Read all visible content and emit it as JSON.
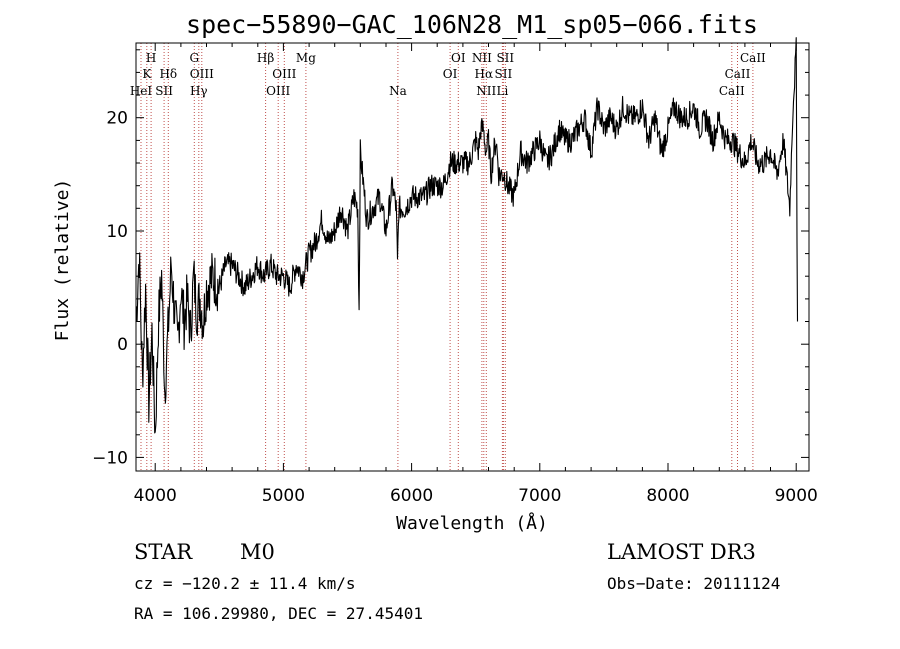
{
  "chart_data": {
    "type": "line",
    "title": "spec−55890−GAC_106N28_M1_sp05−066.fits",
    "xlabel": "Wavelength (Å)",
    "ylabel": "Flux (relative)",
    "xlim": [
      3850,
      9100
    ],
    "ylim": [
      -11.2,
      26.6
    ],
    "x_ticks": [
      4000,
      5000,
      6000,
      7000,
      8000,
      9000
    ],
    "y_ticks": [
      -10,
      0,
      10,
      20
    ],
    "grid": false,
    "series": [
      {
        "name": "spectrum",
        "color": "#000000",
        "x": [
          3850,
          3875,
          3900,
          3925,
          3950,
          3975,
          4000,
          4025,
          4050,
          4075,
          4100,
          4125,
          4150,
          4175,
          4200,
          4225,
          4250,
          4275,
          4300,
          4325,
          4350,
          4375,
          4400,
          4450,
          4500,
          4550,
          4600,
          4650,
          4700,
          4750,
          4800,
          4850,
          4900,
          4950,
          5000,
          5050,
          5100,
          5150,
          5200,
          5250,
          5300,
          5350,
          5400,
          5450,
          5500,
          5550,
          5580,
          5590,
          5600,
          5650,
          5700,
          5750,
          5800,
          5850,
          5880,
          5890,
          5900,
          5950,
          6000,
          6050,
          6100,
          6150,
          6200,
          6250,
          6300,
          6350,
          6400,
          6450,
          6500,
          6520,
          6540,
          6560,
          6580,
          6600,
          6620,
          6640,
          6660,
          6680,
          6700,
          6720,
          6750,
          6800,
          6850,
          6900,
          6950,
          7000,
          7050,
          7100,
          7150,
          7200,
          7250,
          7300,
          7350,
          7400,
          7450,
          7500,
          7550,
          7600,
          7650,
          7700,
          7750,
          7800,
          7850,
          7900,
          7950,
          8000,
          8050,
          8100,
          8150,
          8200,
          8250,
          8300,
          8350,
          8400,
          8450,
          8500,
          8550,
          8600,
          8650,
          8700,
          8750,
          8800,
          8850,
          8900,
          8950,
          8975,
          9000,
          9010
        ],
        "y": [
          2,
          8,
          -3,
          5,
          -5,
          1,
          -8,
          2,
          6,
          -4,
          1,
          7,
          3,
          0,
          5,
          2,
          4,
          1,
          6,
          3,
          4,
          2,
          5,
          6,
          5,
          7,
          7,
          6,
          5,
          6,
          7,
          6,
          7,
          6,
          6,
          5,
          7,
          6,
          8,
          9,
          11,
          9,
          10,
          12,
          10,
          13,
          12,
          3,
          17,
          11,
          12,
          13,
          10,
          14,
          12,
          7,
          12,
          12,
          13,
          13,
          13,
          14,
          14,
          14,
          16,
          16,
          16,
          16,
          18,
          17,
          19,
          19,
          17,
          18,
          15,
          17,
          18,
          15,
          15,
          15,
          14,
          13,
          17,
          16,
          17,
          18,
          16,
          17,
          19,
          18,
          18,
          19,
          20,
          17,
          21,
          19,
          20,
          19,
          21,
          20,
          20,
          21,
          18,
          20,
          17,
          19,
          21,
          20,
          20,
          21,
          19,
          20,
          18,
          20,
          18,
          18,
          17,
          16,
          18,
          16,
          16,
          17,
          15,
          18,
          12,
          21,
          26,
          2
        ]
      }
    ],
    "annotations": [
      {
        "label": "K",
        "wavelength": 3934,
        "row": 2
      },
      {
        "label": "H",
        "wavelength": 3968,
        "row": 1
      },
      {
        "label": "HeI",
        "wavelength": 3889,
        "row": 3
      },
      {
        "label": "SII",
        "wavelength": 4069,
        "row": 3
      },
      {
        "label": "Hδ",
        "wavelength": 4102,
        "row": 2
      },
      {
        "label": "G",
        "wavelength": 4305,
        "row": 1
      },
      {
        "label": "OIII",
        "wavelength": 4363,
        "row": 2
      },
      {
        "label": "Hγ",
        "wavelength": 4340,
        "row": 3
      },
      {
        "label": "Hβ",
        "wavelength": 4861,
        "row": 1
      },
      {
        "label": "OIII",
        "wavelength": 4959,
        "row": 3
      },
      {
        "label": "OIII",
        "wavelength": 5007,
        "row": 2
      },
      {
        "label": "Mg",
        "wavelength": 5175,
        "row": 1
      },
      {
        "label": "Na",
        "wavelength": 5893,
        "row": 3
      },
      {
        "label": "OI",
        "wavelength": 6300,
        "row": 2
      },
      {
        "label": "OI",
        "wavelength": 6364,
        "row": 1
      },
      {
        "label": "NII",
        "wavelength": 6548,
        "row": 1
      },
      {
        "label": "NII",
        "wavelength": 6583,
        "row": 3
      },
      {
        "label": "Hα",
        "wavelength": 6563,
        "row": 2
      },
      {
        "label": "SII",
        "wavelength": 6716,
        "row": 2
      },
      {
        "label": "SII",
        "wavelength": 6731,
        "row": 1
      },
      {
        "label": "Li",
        "wavelength": 6708,
        "row": 3
      },
      {
        "label": "CaII",
        "wavelength": 8498,
        "row": 3
      },
      {
        "label": "CaII",
        "wavelength": 8542,
        "row": 2
      },
      {
        "label": "CaII",
        "wavelength": 8662,
        "row": 1
      }
    ]
  },
  "info": {
    "object_class": "STAR",
    "subclass": "M0",
    "survey": "LAMOST DR3",
    "cz": "cz = −120.2 ± 11.4 km/s",
    "obs_date": "Obs−Date: 20111124",
    "coords": "RA = 106.29980, DEC =  27.45401"
  },
  "colors": {
    "spectrum": "#000000",
    "line_markers": "#c0504d"
  }
}
